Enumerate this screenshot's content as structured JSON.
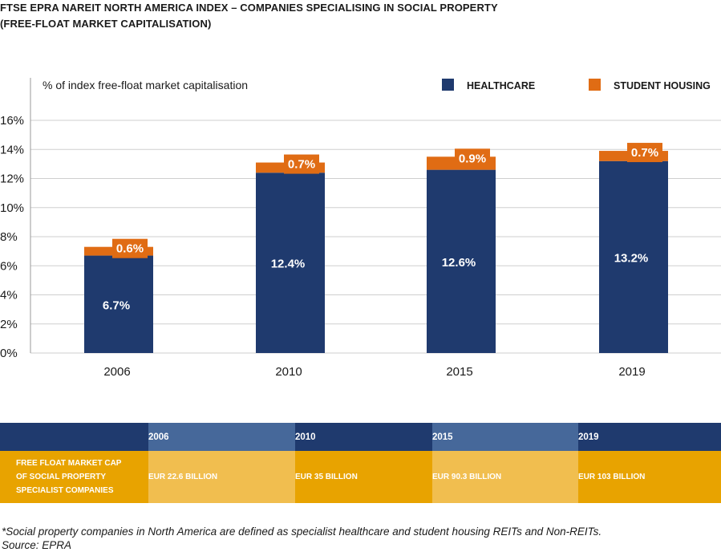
{
  "title": {
    "line1": "FTSE EPRA NAREIT NORTH AMERICA INDEX – COMPANIES SPECIALISING IN SOCIAL PROPERTY",
    "line2": "(FREE-FLOAT MARKET CAPITALISATION)"
  },
  "chart_data": {
    "type": "bar",
    "stacked": true,
    "ylabel": "% of index free-float market capitalisation",
    "ylim": [
      0,
      16
    ],
    "yticks": [
      "0%",
      "2%",
      "4%",
      "6%",
      "8%",
      "10%",
      "12%",
      "14%",
      "16%"
    ],
    "categories": [
      "2006",
      "2010",
      "2015",
      "2019"
    ],
    "series": [
      {
        "name": "HEALTHCARE",
        "color": "#1f3a6e",
        "values": [
          6.7,
          12.4,
          12.6,
          13.2
        ],
        "labels": [
          "6.7%",
          "12.4%",
          "12.6%",
          "13.2%"
        ]
      },
      {
        "name": "STUDENT HOUSING",
        "color": "#e06c14",
        "values": [
          0.6,
          0.7,
          0.9,
          0.7
        ],
        "labels": [
          "0.6%",
          "0.7%",
          "0.9%",
          "0.7%"
        ]
      }
    ],
    "grid": true,
    "legend": "top-right"
  },
  "cap_table": {
    "years": [
      "2006",
      "2010",
      "2015",
      "2019"
    ],
    "row_label": [
      "FREE FLOAT MARKET CAP",
      "OF SOCIAL PROPERTY",
      "SPECIALIST COMPANIES"
    ],
    "values": [
      "EUR 22.6 BILLION",
      "EUR 35 BILLION",
      "EUR 90.3 BILLION",
      "EUR 103 BILLION"
    ]
  },
  "footnote": {
    "line1": "*Social property companies in North America are defined as specialist healthcare and student housing REITs and Non-REITs.",
    "line2": "Source: EPRA"
  }
}
